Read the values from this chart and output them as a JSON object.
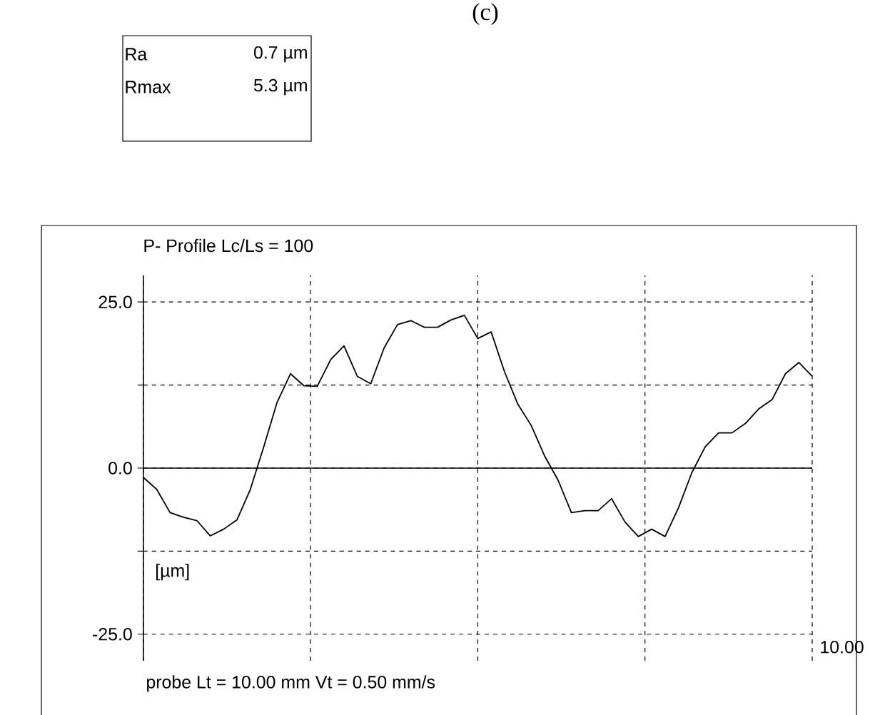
{
  "chart_data": {
    "type": "line",
    "title": "(c)",
    "subtitle": "P-  Profile  Lc/Ls = 100",
    "ylabel": "[µm]",
    "annotations": [
      "Ra",
      "0.7 µm",
      "Rmax",
      "5.3 µm",
      "probe   Lt = 10.00  mm    Vt = 0.50  mm/s",
      "10.00"
    ],
    "categories": [
      null,
      null,
      null,
      null,
      null,
      null,
      null,
      null,
      null,
      null,
      null,
      null,
      null,
      null,
      null,
      null,
      null,
      null,
      null,
      null,
      null,
      null,
      null,
      null,
      null,
      null,
      null,
      null,
      null,
      null,
      null,
      null,
      null,
      null,
      null,
      null,
      null,
      null,
      null,
      null,
      null,
      null,
      null,
      null,
      null,
      null,
      null,
      null,
      null,
      null,
      null
    ],
    "series": [
      {
        "color": "#000000",
        "values": [
          -1.4,
          -3.2,
          -6.7,
          -7.4,
          -7.9,
          -10.2,
          -9.2,
          -7.8,
          -3.2,
          3.2,
          9.9,
          14.2,
          12.4,
          12.3,
          16.3,
          18.4,
          13.8,
          12.7,
          18.1,
          21.6,
          22.2,
          21.2,
          21.2,
          22.3,
          23.0,
          19.5,
          20.5,
          14.5,
          9.6,
          6.4,
          1.8,
          -1.8,
          -6.7,
          -6.4,
          -6.4,
          -4.6,
          -8.1,
          -10.3,
          -9.2,
          -10.3,
          -6.0,
          -0.7,
          3.2,
          5.3,
          5.3,
          6.7,
          8.9,
          10.3,
          14.2,
          15.9,
          13.8
        ]
      }
    ],
    "ylim": [
      -29,
      29
    ],
    "yticks": [
      {
        "value": -25,
        "label": "-25.0"
      },
      {
        "value": -12.5,
        "label": null
      },
      {
        "value": 0,
        "label": "0.0"
      },
      {
        "value": 12.5,
        "label": null
      },
      {
        "value": 25,
        "label": "25.0"
      }
    ],
    "grid": true,
    "ref_lines": [
      {
        "axis": "y",
        "value": 0,
        "color": "#000000",
        "line_style": "solid"
      }
    ]
  }
}
